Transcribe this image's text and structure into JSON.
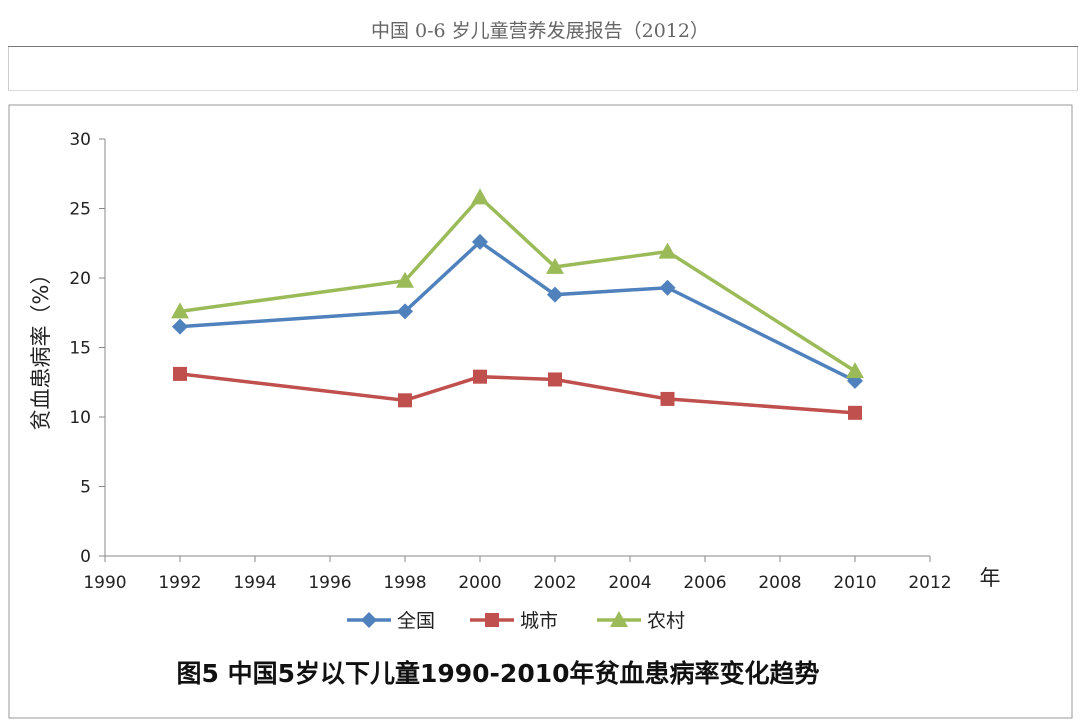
{
  "document": {
    "header": "中国 0-6 岁儿童营养发展报告（2012）"
  },
  "chart_data": {
    "type": "line",
    "title": "图5 中国5岁以下儿童1990-2010年贫血患病率变化趋势",
    "xlabel": "年",
    "ylabel": "贫血患病率（%）",
    "xlim": [
      1990,
      2012
    ],
    "ylim": [
      0,
      30
    ],
    "x_ticks": [
      1990,
      1992,
      1994,
      1996,
      1998,
      2000,
      2002,
      2004,
      2006,
      2008,
      2010,
      2012
    ],
    "y_ticks": [
      0,
      5,
      10,
      15,
      20,
      25,
      30
    ],
    "grid": false,
    "legend_position": "bottom",
    "x": [
      1992,
      1998,
      2000,
      2002,
      2005,
      2010
    ],
    "series": [
      {
        "name": "全国",
        "values": [
          16.5,
          17.6,
          22.6,
          18.8,
          19.3,
          12.6
        ],
        "color": "#4f81bd",
        "marker": "diamond"
      },
      {
        "name": "城市",
        "values": [
          13.1,
          11.2,
          12.9,
          12.7,
          11.3,
          10.3
        ],
        "color": "#c0504d",
        "marker": "square"
      },
      {
        "name": "农村",
        "values": [
          17.6,
          19.8,
          25.8,
          20.8,
          21.9,
          13.3
        ],
        "color": "#9bbb59",
        "marker": "triangle"
      }
    ]
  }
}
